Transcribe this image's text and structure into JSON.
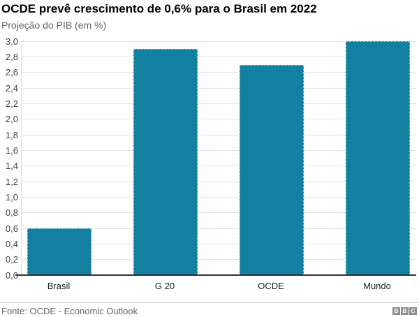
{
  "header": {
    "title": "OCDE prevê crescimento de 0,6% para o Brasil em 2022",
    "subtitle": "Projeção do PIB (em %)"
  },
  "chart_data": {
    "type": "bar",
    "title": "OCDE prevê crescimento de 0,6% para o Brasil em 2022",
    "subtitle": "Projeção do PIB (em %)",
    "categories": [
      "Brasil",
      "G 20",
      "OCDE",
      "Mundo"
    ],
    "values": [
      0.6,
      2.9,
      2.7,
      3.0
    ],
    "xlabel": "",
    "ylabel": "",
    "ylim": [
      0,
      3.0
    ],
    "grid": true,
    "legend": "none",
    "bar_color": "#1380A1",
    "decimal_separator": ",",
    "yticks": [
      {
        "value": 0.0,
        "label": "0,0"
      },
      {
        "value": 0.2,
        "label": "0,2"
      },
      {
        "value": 0.4,
        "label": "0,4"
      },
      {
        "value": 0.6,
        "label": "0,6"
      },
      {
        "value": 0.8,
        "label": "0,8"
      },
      {
        "value": 1.0,
        "label": "1,0"
      },
      {
        "value": 1.2,
        "label": "1,2"
      },
      {
        "value": 1.4,
        "label": "1,4"
      },
      {
        "value": 1.6,
        "label": "1,6"
      },
      {
        "value": 1.8,
        "label": "1,8"
      },
      {
        "value": 2.0,
        "label": "2,0"
      },
      {
        "value": 2.2,
        "label": "2,2"
      },
      {
        "value": 2.4,
        "label": "2,4"
      },
      {
        "value": 2.6,
        "label": "2,6"
      },
      {
        "value": 2.8,
        "label": "2,8"
      },
      {
        "value": 3.0,
        "label": "3,0"
      }
    ]
  },
  "footer": {
    "source": "Fonte: OCDE - Economic Outlook",
    "logo_blocks": [
      "B",
      "B",
      "C"
    ]
  },
  "colors": {
    "bar": "#1380A1",
    "gridline": "#e2e2e2",
    "axis_line": "#333333",
    "title_text": "#000000",
    "subtitle_text": "#666666",
    "tick_text": "#404040",
    "source_text": "#666666",
    "logo_block_bg": "#8f8f8f"
  }
}
